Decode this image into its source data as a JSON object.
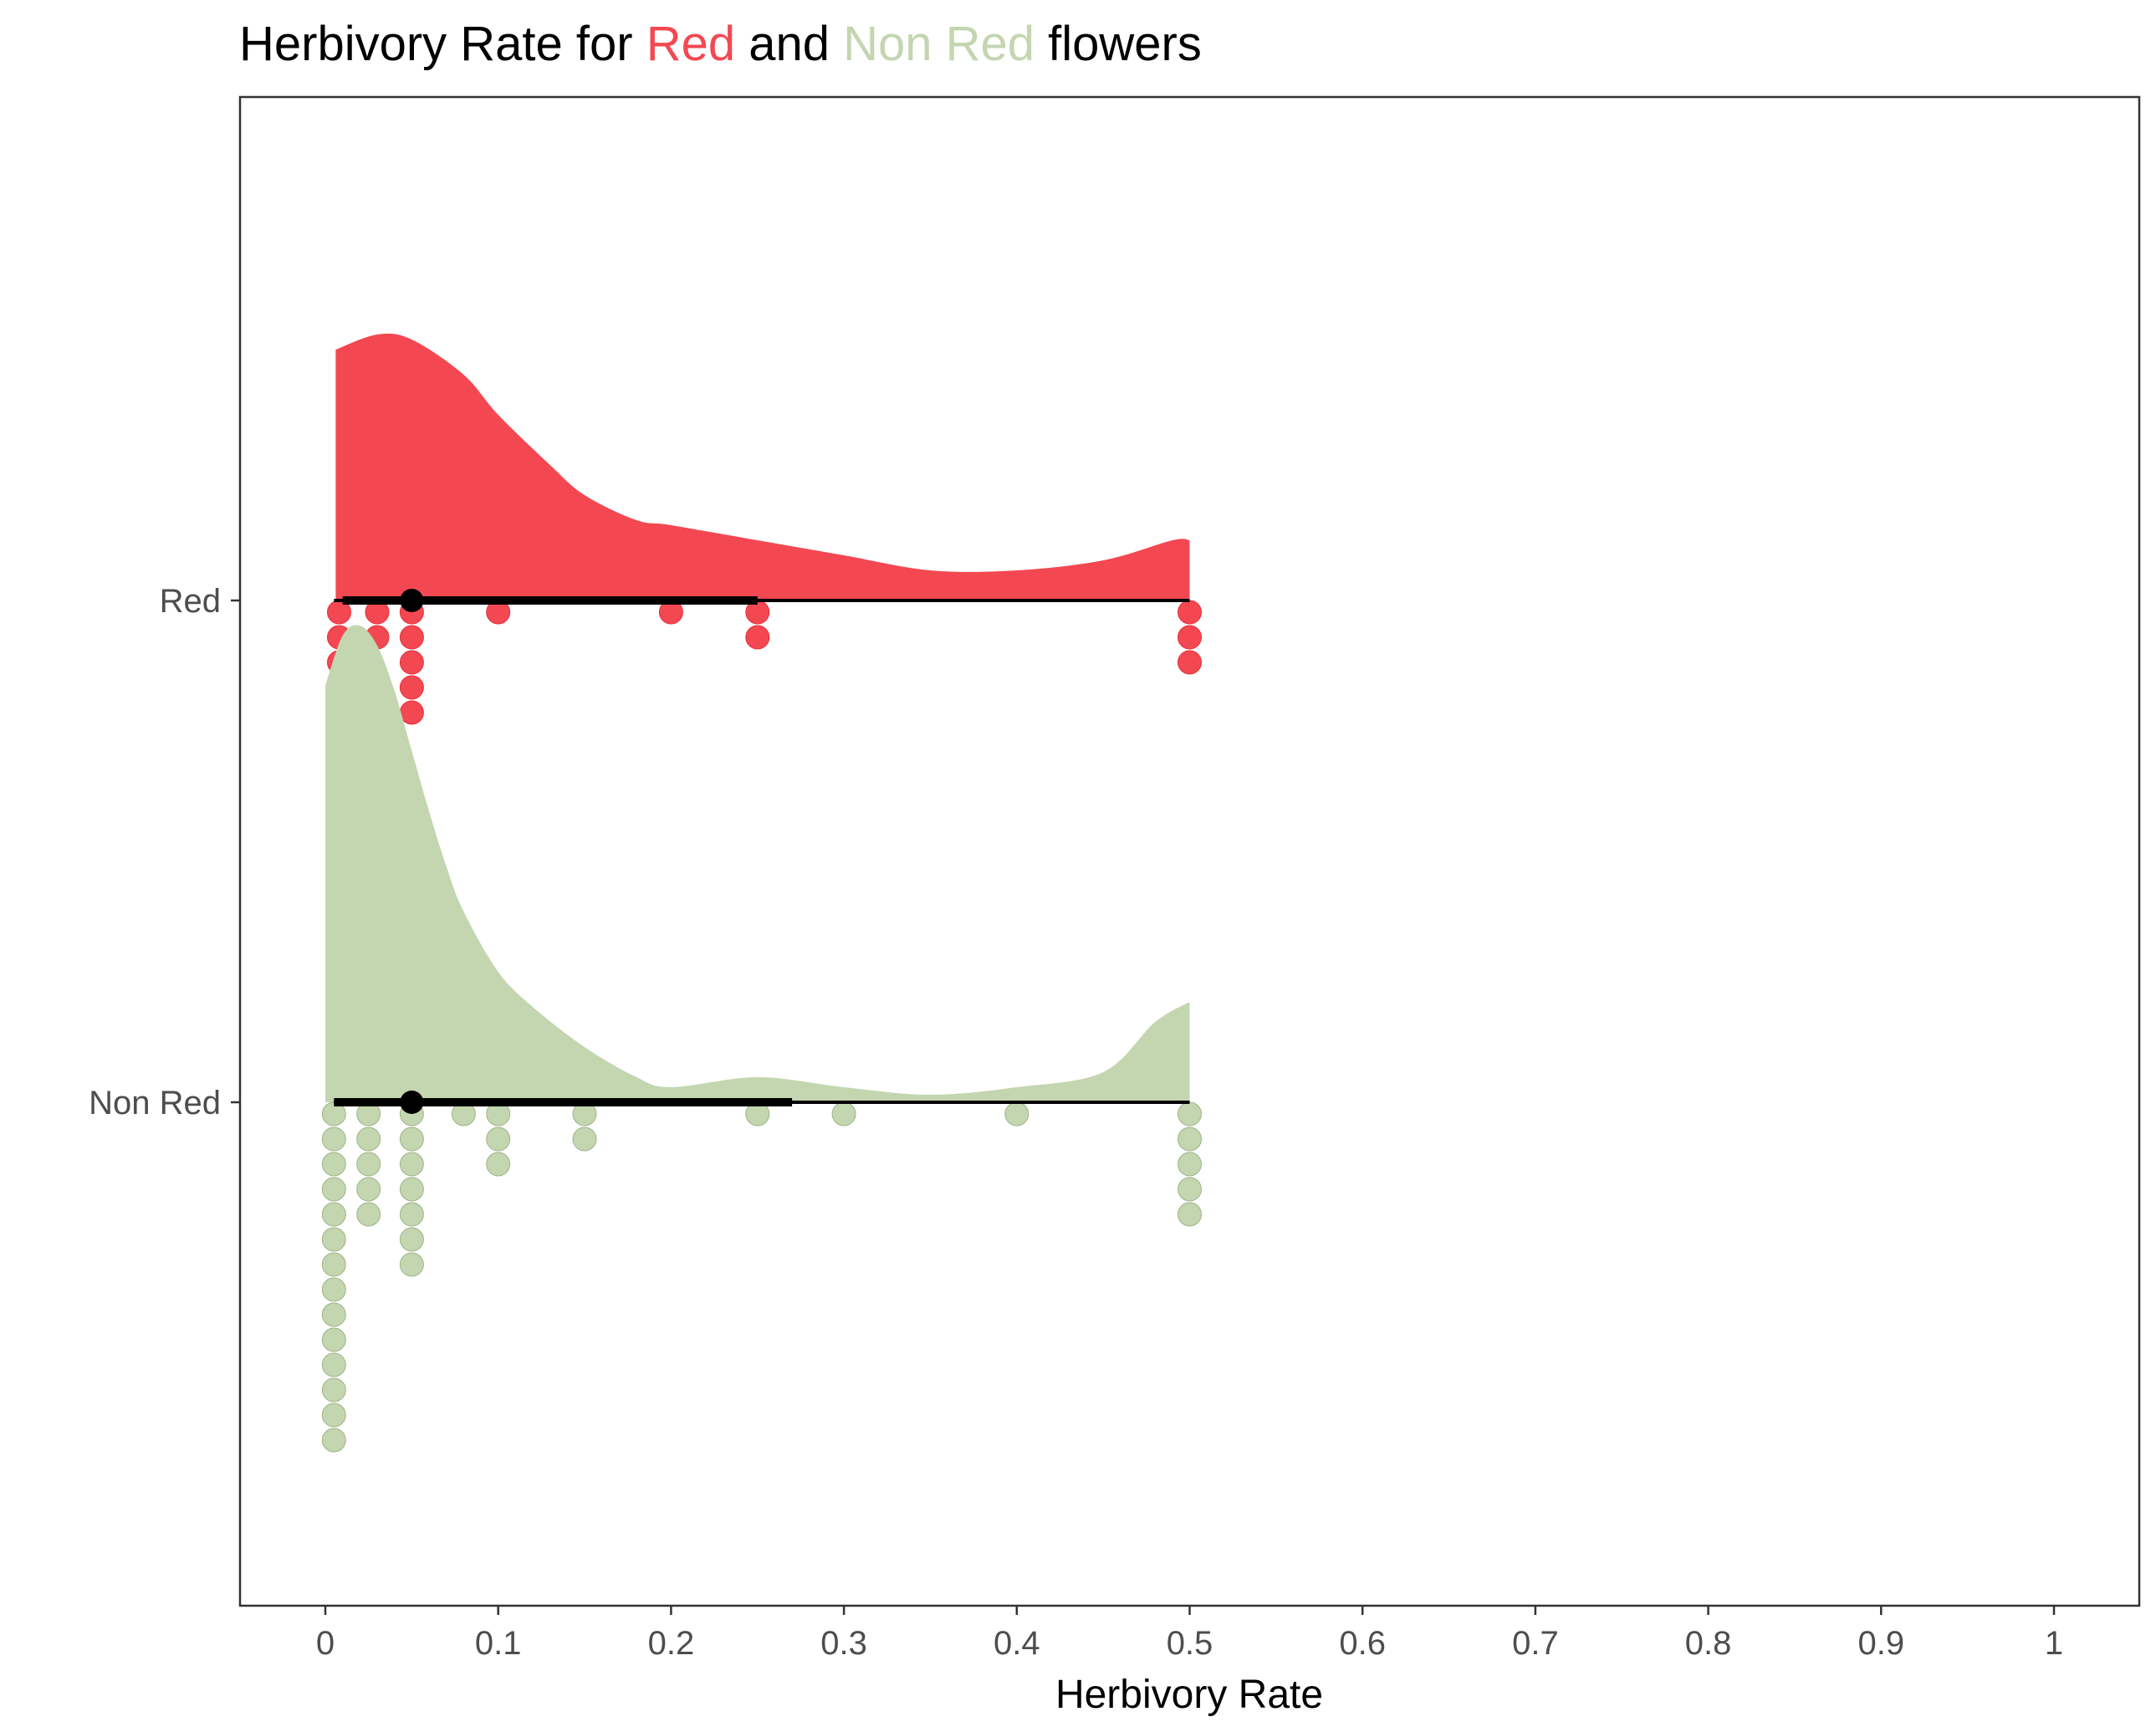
{
  "chart_data": {
    "type": "raincloud",
    "title": {
      "parts": [
        {
          "text": "Herbivory Rate for ",
          "color": "#000000"
        },
        {
          "text": "Red",
          "color": "#F34852"
        },
        {
          "text": " and ",
          "color": "#000000"
        },
        {
          "text": "Non Red",
          "color": "#C3D6B0"
        },
        {
          "text": " flowers",
          "color": "#000000"
        }
      ]
    },
    "xlabel": "Herbivory Rate",
    "ylabel": "",
    "xlim": [
      -0.05,
      1.05
    ],
    "x_ticks": [
      {
        "value": 0,
        "label": "0"
      },
      {
        "value": 0.1,
        "label": "0.1"
      },
      {
        "value": 0.2,
        "label": "0.2"
      },
      {
        "value": 0.3,
        "label": "0.3"
      },
      {
        "value": 0.4,
        "label": "0.4"
      },
      {
        "value": 0.5,
        "label": "0.5"
      },
      {
        "value": 0.6,
        "label": "0.6"
      },
      {
        "value": 0.7,
        "label": "0.7"
      },
      {
        "value": 0.8,
        "label": "0.8"
      },
      {
        "value": 0.9,
        "label": "0.9"
      },
      {
        "value": 1,
        "label": "1"
      }
    ],
    "grid": false,
    "series": [
      {
        "name": "Red",
        "color": "#F34852",
        "point_stroke": "#E8303A",
        "position": 2,
        "density": {
          "x": [
            0.006,
            0.03,
            0.05,
            0.08,
            0.1,
            0.13,
            0.15,
            0.18,
            0.2,
            0.25,
            0.3,
            0.35,
            0.4,
            0.45,
            0.49,
            0.5
          ],
          "y": [
            0.5,
            0.53,
            0.52,
            0.45,
            0.37,
            0.27,
            0.21,
            0.16,
            0.15,
            0.12,
            0.09,
            0.06,
            0.06,
            0.08,
            0.12,
            0.12
          ]
        },
        "dots": [
          {
            "x": 0.008,
            "count": 6
          },
          {
            "x": 0.03,
            "count": 2
          },
          {
            "x": 0.05,
            "count": 5
          },
          {
            "x": 0.1,
            "count": 1
          },
          {
            "x": 0.2,
            "count": 1
          },
          {
            "x": 0.25,
            "count": 2
          },
          {
            "x": 0.5,
            "count": 3
          }
        ],
        "median": 0.05,
        "interval_inner": [
          0.01,
          0.25
        ],
        "interval_outer": [
          0.005,
          0.5
        ]
      },
      {
        "name": "Non Red",
        "color": "#C3D6B0",
        "point_stroke": "#9FB48A",
        "position": 1,
        "density": {
          "x": [
            0.0,
            0.01,
            0.02,
            0.03,
            0.04,
            0.05,
            0.06,
            0.07,
            0.08,
            0.1,
            0.12,
            0.15,
            0.18,
            0.2,
            0.25,
            0.3,
            0.35,
            0.4,
            0.45,
            0.48,
            0.5
          ],
          "y": [
            0.83,
            0.93,
            0.95,
            0.91,
            0.82,
            0.7,
            0.58,
            0.47,
            0.38,
            0.26,
            0.19,
            0.11,
            0.05,
            0.03,
            0.05,
            0.03,
            0.015,
            0.03,
            0.06,
            0.16,
            0.2
          ]
        },
        "dots": [
          {
            "x": 0.005,
            "count": 14
          },
          {
            "x": 0.025,
            "count": 5
          },
          {
            "x": 0.05,
            "count": 7
          },
          {
            "x": 0.08,
            "count": 1
          },
          {
            "x": 0.1,
            "count": 3
          },
          {
            "x": 0.15,
            "count": 2
          },
          {
            "x": 0.25,
            "count": 1
          },
          {
            "x": 0.3,
            "count": 1
          },
          {
            "x": 0.4,
            "count": 1
          },
          {
            "x": 0.5,
            "count": 5
          }
        ],
        "median": 0.05,
        "interval_inner": [
          0.005,
          0.27
        ],
        "interval_outer": [
          0.005,
          0.5
        ]
      }
    ],
    "categories": [
      "Red",
      "Non Red"
    ]
  }
}
